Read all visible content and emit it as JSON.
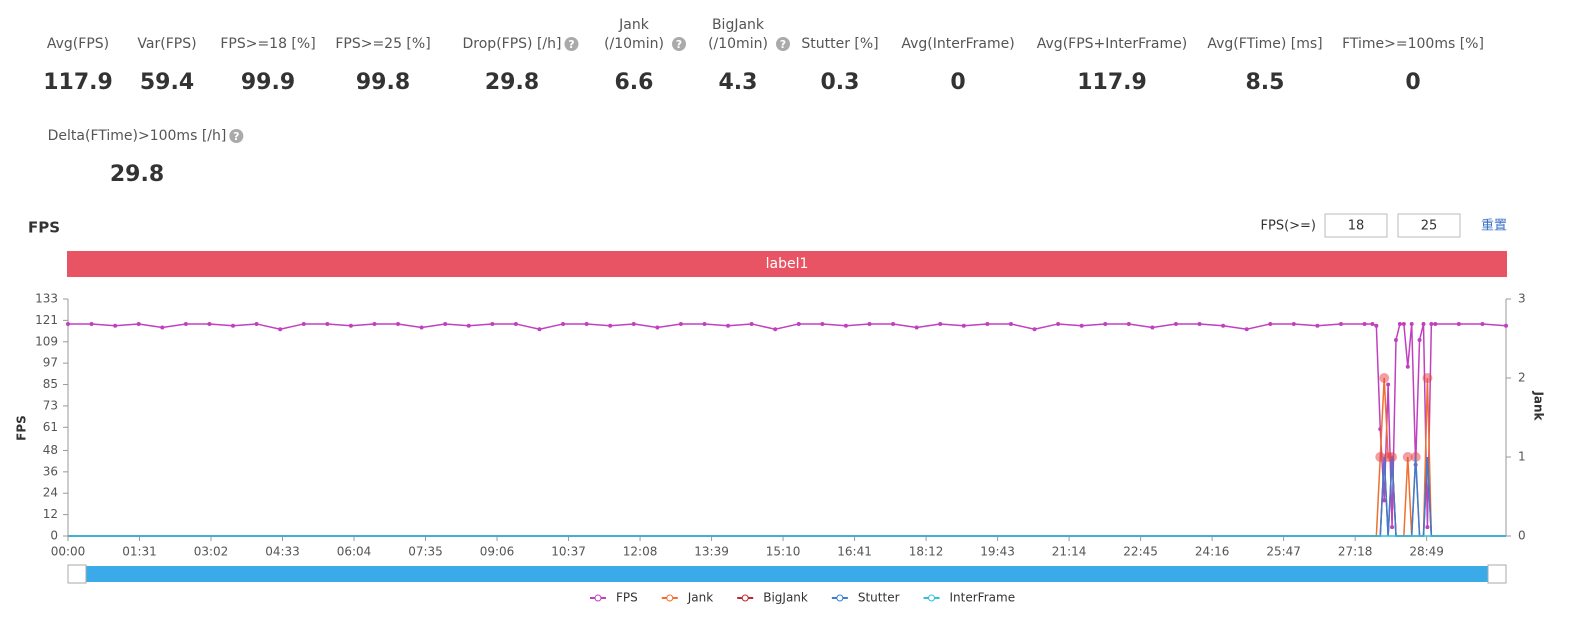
{
  "stats": [
    {
      "label": "Avg(FPS)",
      "value": 117.9
    },
    {
      "label": "Var(FPS)",
      "value": 59.4
    },
    {
      "label": "FPS>=18 [%]",
      "value": 99.9
    },
    {
      "label": "FPS>=25 [%]",
      "value": 99.8
    },
    {
      "label": "Drop(FPS) [/h]",
      "value": 29.8,
      "help": true
    },
    {
      "label": [
        "Jank",
        "(/10min)"
      ],
      "value": 6.6,
      "help": true
    },
    {
      "label": [
        "BigJank",
        "(/10min)"
      ],
      "value": 4.3,
      "help": true
    },
    {
      "label": "Stutter [%]",
      "value": 0.3
    },
    {
      "label": "Avg(InterFrame)",
      "value": 0
    },
    {
      "label": "Avg(FPS+InterFrame)",
      "value": 117.9
    },
    {
      "label": "Avg(FTime) [ms]",
      "value": 8.5
    },
    {
      "label": "FTime>=100ms [%]",
      "value": 0
    },
    {
      "label": "Delta(FTime)>100ms [/h]",
      "value": 29.8,
      "help": true
    }
  ],
  "controls": {
    "label": "FPS(>=)",
    "inputs": [
      18,
      25
    ],
    "reset": "重置"
  },
  "chart_data": {
    "type": "line",
    "title": "FPS",
    "banner": "label1",
    "ylabel": "FPS",
    "y2label": "Jank",
    "xlim": [
      0,
      1830
    ],
    "xticks": [
      {
        "value": 0,
        "label": "00:00"
      },
      {
        "value": 91,
        "label": "01:31"
      },
      {
        "value": 182,
        "label": "03:02"
      },
      {
        "value": 273,
        "label": "04:33"
      },
      {
        "value": 364,
        "label": "06:04"
      },
      {
        "value": 455,
        "label": "07:35"
      },
      {
        "value": 546,
        "label": "09:06"
      },
      {
        "value": 637,
        "label": "10:37"
      },
      {
        "value": 728,
        "label": "12:08"
      },
      {
        "value": 819,
        "label": "13:39"
      },
      {
        "value": 910,
        "label": "15:10"
      },
      {
        "value": 1001,
        "label": "16:41"
      },
      {
        "value": 1092,
        "label": "18:12"
      },
      {
        "value": 1183,
        "label": "19:43"
      },
      {
        "value": 1274,
        "label": "21:14"
      },
      {
        "value": 1365,
        "label": "22:45"
      },
      {
        "value": 1456,
        "label": "24:16"
      },
      {
        "value": 1547,
        "label": "25:47"
      },
      {
        "value": 1638,
        "label": "27:18"
      },
      {
        "value": 1729,
        "label": "28:49"
      }
    ],
    "ylim": [
      0,
      133
    ],
    "yticks": [
      0,
      12,
      24,
      36,
      48,
      61,
      73,
      85,
      97,
      109,
      121,
      133
    ],
    "y2lim": [
      0,
      3
    ],
    "y2ticks": [
      0,
      1,
      2,
      3
    ],
    "x": [
      0,
      30,
      60,
      90,
      120,
      150,
      180,
      210,
      240,
      270,
      300,
      330,
      360,
      390,
      420,
      450,
      480,
      510,
      540,
      570,
      600,
      630,
      660,
      690,
      720,
      750,
      780,
      810,
      840,
      870,
      900,
      930,
      960,
      990,
      1020,
      1050,
      1080,
      1110,
      1140,
      1170,
      1200,
      1230,
      1260,
      1290,
      1320,
      1350,
      1380,
      1410,
      1440,
      1470,
      1500,
      1530,
      1560,
      1590,
      1620,
      1650,
      1660,
      1665,
      1670,
      1675,
      1680,
      1685,
      1690,
      1695,
      1700,
      1705,
      1710,
      1715,
      1720,
      1725,
      1730,
      1735,
      1740,
      1770,
      1800,
      1830
    ],
    "series": [
      {
        "name": "FPS",
        "color": "#c040c0",
        "values": [
          119,
          119,
          118,
          119,
          117,
          119,
          119,
          118,
          119,
          116,
          119,
          119,
          118,
          119,
          119,
          117,
          119,
          118,
          119,
          119,
          116,
          119,
          119,
          118,
          119,
          117,
          119,
          119,
          118,
          119,
          116,
          119,
          119,
          118,
          119,
          119,
          117,
          119,
          118,
          119,
          119,
          116,
          119,
          118,
          119,
          119,
          117,
          119,
          119,
          118,
          116,
          119,
          119,
          118,
          119,
          119,
          119,
          118,
          60,
          20,
          85,
          5,
          110,
          119,
          119,
          95,
          119,
          40,
          110,
          119,
          5,
          119,
          119,
          119,
          119,
          118
        ]
      },
      {
        "name": "Jank",
        "color": "#f07030",
        "axis": "y2",
        "values": [
          0,
          0,
          0,
          0,
          0,
          0,
          0,
          0,
          0,
          0,
          0,
          0,
          0,
          0,
          0,
          0,
          0,
          0,
          0,
          0,
          0,
          0,
          0,
          0,
          0,
          0,
          0,
          0,
          0,
          0,
          0,
          0,
          0,
          0,
          0,
          0,
          0,
          0,
          0,
          0,
          0,
          0,
          0,
          0,
          0,
          0,
          0,
          0,
          0,
          0,
          0,
          0,
          0,
          0,
          0,
          0,
          0,
          0,
          1,
          2,
          1,
          1,
          0,
          0,
          0,
          1,
          0,
          1,
          0,
          0,
          2,
          0,
          0,
          0,
          0,
          0
        ]
      },
      {
        "name": "BigJank",
        "color": "#c0282c",
        "axis": "y2",
        "values": [
          0,
          0,
          0,
          0,
          0,
          0,
          0,
          0,
          0,
          0,
          0,
          0,
          0,
          0,
          0,
          0,
          0,
          0,
          0,
          0,
          0,
          0,
          0,
          0,
          0,
          0,
          0,
          0,
          0,
          0,
          0,
          0,
          0,
          0,
          0,
          0,
          0,
          0,
          0,
          0,
          0,
          0,
          0,
          0,
          0,
          0,
          0,
          0,
          0,
          0,
          0,
          0,
          0,
          0,
          0,
          0,
          0,
          0,
          0,
          1,
          0,
          1,
          0,
          0,
          0,
          0,
          0,
          0,
          0,
          0,
          1,
          0,
          0,
          0,
          0,
          0
        ]
      },
      {
        "name": "Stutter",
        "color": "#3a7fd0",
        "axis": "y2",
        "values": [
          0,
          0,
          0,
          0,
          0,
          0,
          0,
          0,
          0,
          0,
          0,
          0,
          0,
          0,
          0,
          0,
          0,
          0,
          0,
          0,
          0,
          0,
          0,
          0,
          0,
          0,
          0,
          0,
          0,
          0,
          0,
          0,
          0,
          0,
          0,
          0,
          0,
          0,
          0,
          0,
          0,
          0,
          0,
          0,
          0,
          0,
          0,
          0,
          0,
          0,
          0,
          0,
          0,
          0,
          0,
          0,
          0,
          0,
          0,
          1,
          0,
          1,
          0,
          0,
          0,
          0,
          0,
          1,
          0,
          0,
          1,
          0,
          0,
          0,
          0,
          0
        ]
      },
      {
        "name": "InterFrame",
        "color": "#30c0e0",
        "axis": "y2",
        "values": [
          0,
          0,
          0,
          0,
          0,
          0,
          0,
          0,
          0,
          0,
          0,
          0,
          0,
          0,
          0,
          0,
          0,
          0,
          0,
          0,
          0,
          0,
          0,
          0,
          0,
          0,
          0,
          0,
          0,
          0,
          0,
          0,
          0,
          0,
          0,
          0,
          0,
          0,
          0,
          0,
          0,
          0,
          0,
          0,
          0,
          0,
          0,
          0,
          0,
          0,
          0,
          0,
          0,
          0,
          0,
          0,
          0,
          0,
          0,
          0,
          0,
          0,
          0,
          0,
          0,
          0,
          0,
          0,
          0,
          0,
          0,
          0,
          0,
          0,
          0,
          0
        ]
      }
    ]
  }
}
